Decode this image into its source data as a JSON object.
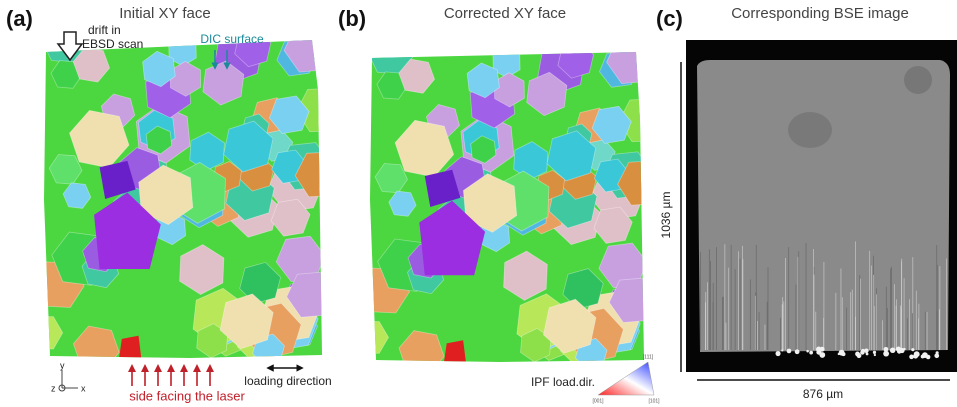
{
  "panels": [
    {
      "label": "(a)",
      "title": "Initial XY face",
      "drift": [
        "drift in",
        "EBSD scan"
      ],
      "dic": "DIC surface",
      "laser": "side facing the laser",
      "loading": "loading direction",
      "axes": {
        "y": "y",
        "z": "z",
        "x": "x"
      }
    },
    {
      "label": "(b)",
      "title": "Corrected XY face",
      "ipf": {
        "label": "IPF load.dir.",
        "corners": [
          "[111]",
          "[001]",
          "[101]"
        ]
      }
    },
    {
      "label": "(c)",
      "title": "Corresponding BSE image",
      "height_label": "1036 µm",
      "width_label": "876 µm"
    }
  ]
}
